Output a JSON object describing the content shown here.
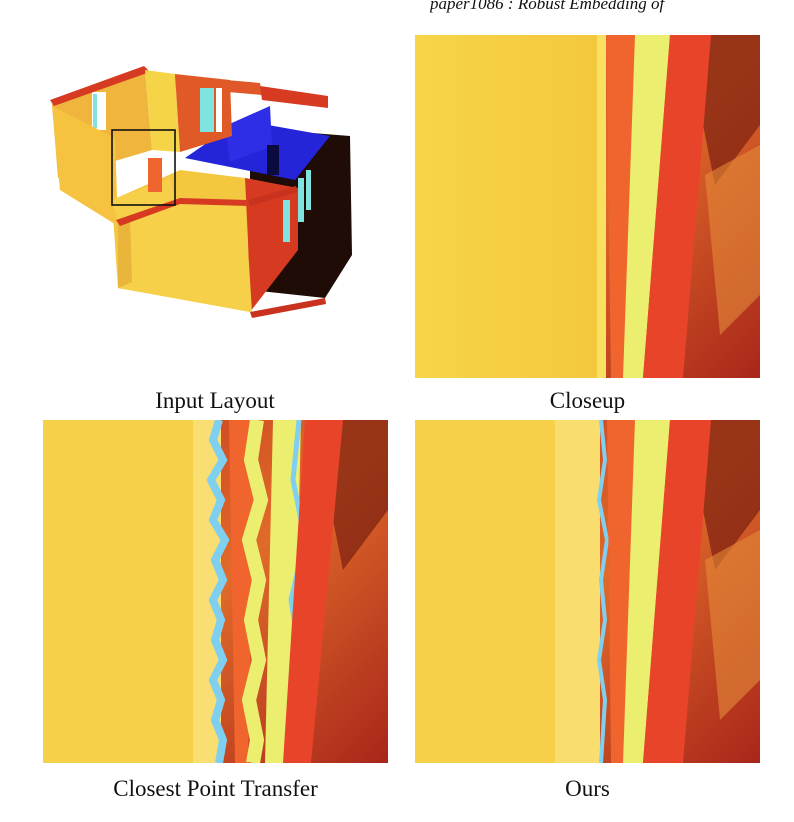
{
  "header": {
    "running_title": "paper1086 : Robust Embedding of"
  },
  "figure": {
    "panels": [
      {
        "id": "input-layout",
        "caption": "Input Layout"
      },
      {
        "id": "closeup",
        "caption": "Closeup"
      },
      {
        "id": "closest-point-transfer",
        "caption": "Closest Point Transfer"
      },
      {
        "id": "ours",
        "caption": "Ours"
      }
    ]
  },
  "colors": {
    "wall_yellow": "#f6d048",
    "wall_orange": "#f0642e",
    "wall_red": "#dc3a22",
    "dark_red": "#7a1a0c",
    "room_blue": "#2424d8",
    "window_cyan": "#7fe3e0",
    "artifact_blue": "#7fd0f0"
  }
}
